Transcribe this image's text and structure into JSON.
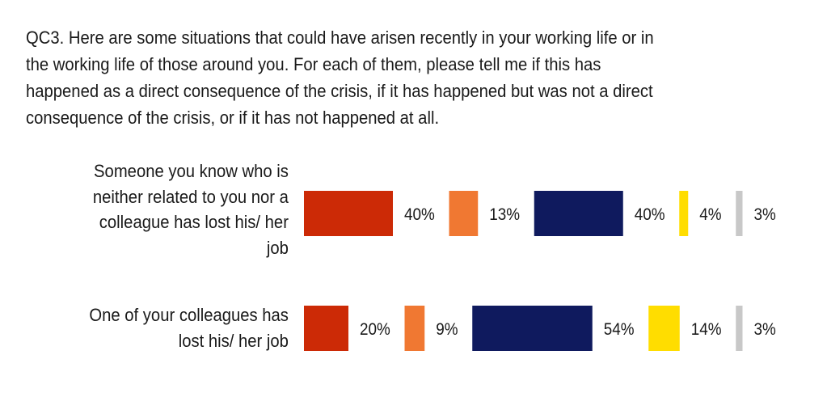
{
  "question": "QC3. Here are some situations that could have arisen recently in your working life or in\nthe working life of those around you. For each of them, please tell me if this has\nhappened as a direct consequence of the crisis, if it has happened but was not a direct\nconsequence of the crisis, or if it has not happened at all.",
  "colors": [
    "#cc2a06",
    "#f07832",
    "#0f1a5e",
    "#ffdd00",
    "#c8c8c8"
  ],
  "chart_data": {
    "type": "bar",
    "categories": [
      "Someone you know who is\nneither related to you nor a\ncolleague has lost his/ her\njob",
      "One of your colleagues has\nlost his/ her job"
    ],
    "series": [
      {
        "values": [
          40,
          20
        ]
      },
      {
        "values": [
          13,
          9
        ]
      },
      {
        "values": [
          40,
          54
        ]
      },
      {
        "values": [
          4,
          14
        ]
      },
      {
        "values": [
          3,
          3
        ]
      }
    ],
    "unit": "%",
    "labels": [
      [
        "40%",
        "13%",
        "40%",
        "4%",
        "3%"
      ],
      [
        "20%",
        "9%",
        "54%",
        "14%",
        "3%"
      ]
    ]
  }
}
